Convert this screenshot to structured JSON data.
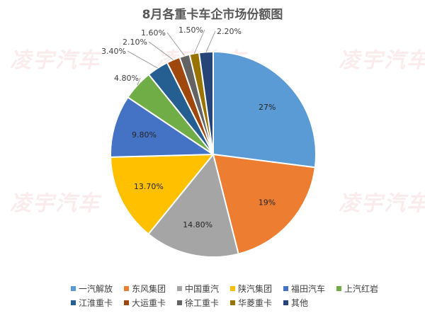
{
  "watermark_text": "凌宇汽车",
  "chart_data": {
    "type": "pie",
    "title": "8月各重卡车企市场份额图",
    "legend_position": "bottom",
    "slices": [
      {
        "label": "一汽解放",
        "value": 27,
        "display": "27%",
        "color": "#5b9bd5"
      },
      {
        "label": "东风集团",
        "value": 19,
        "display": "19%",
        "color": "#ed7d31"
      },
      {
        "label": "中国重汽",
        "value": 14.8,
        "display": "14.80%",
        "color": "#a5a5a5"
      },
      {
        "label": "陕汽集团",
        "value": 13.7,
        "display": "13.70%",
        "color": "#ffc000"
      },
      {
        "label": "福田汽车",
        "value": 9.8,
        "display": "9.80%",
        "color": "#4472c4"
      },
      {
        "label": "上汽红岩",
        "value": 4.8,
        "display": "4.80%",
        "color": "#70ad47"
      },
      {
        "label": "江淮重卡",
        "value": 3.4,
        "display": "3.40%",
        "color": "#255e91"
      },
      {
        "label": "大运重卡",
        "value": 2.1,
        "display": "2.10%",
        "color": "#9e480e"
      },
      {
        "label": "徐工重卡",
        "value": 1.6,
        "display": "1.60%",
        "color": "#636363"
      },
      {
        "label": "华菱重卡",
        "value": 1.5,
        "display": "1.50%",
        "color": "#997300"
      },
      {
        "label": "其他",
        "value": 2.2,
        "display": "2.20%",
        "color": "#264478"
      }
    ]
  }
}
